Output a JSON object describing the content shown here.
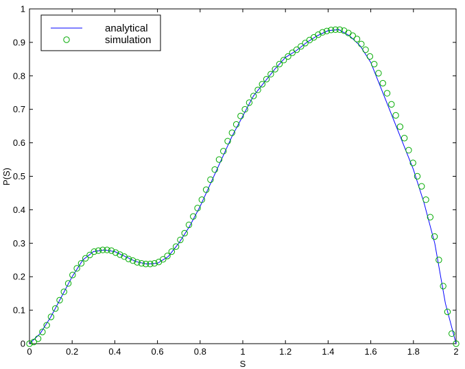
{
  "chart_data": {
    "type": "line",
    "title": "",
    "xlabel": "S",
    "ylabel": "P(S)",
    "xlim": [
      0,
      2
    ],
    "ylim": [
      0,
      1
    ],
    "xticks": [
      "0",
      "0.2",
      "0.4",
      "0.6",
      "0.8",
      "1",
      "1.2",
      "1.4",
      "1.6",
      "1.8",
      "2"
    ],
    "yticks": [
      "0",
      "0.1",
      "0.2",
      "0.3",
      "0.4",
      "0.5",
      "0.6",
      "0.7",
      "0.8",
      "0.9",
      "1"
    ],
    "grid": false,
    "legend": {
      "placement": "top-left",
      "entries": [
        "analytical",
        "simulation"
      ]
    },
    "series": [
      {
        "name": "analytical",
        "style": "line",
        "color": "#0000ff",
        "x": [
          0,
          0.05,
          0.1,
          0.15,
          0.2,
          0.25,
          0.3,
          0.35,
          0.4,
          0.45,
          0.5,
          0.55,
          0.6,
          0.65,
          0.7,
          0.75,
          0.8,
          0.85,
          0.9,
          0.95,
          1.0,
          1.05,
          1.1,
          1.15,
          1.2,
          1.25,
          1.3,
          1.35,
          1.4,
          1.45,
          1.5,
          1.55,
          1.6,
          1.65,
          1.7,
          1.75,
          1.8,
          1.85,
          1.9,
          1.95,
          2.0
        ],
        "y": [
          0,
          0.03,
          0.08,
          0.14,
          0.2,
          0.25,
          0.275,
          0.28,
          0.275,
          0.26,
          0.245,
          0.238,
          0.24,
          0.26,
          0.3,
          0.35,
          0.41,
          0.48,
          0.55,
          0.62,
          0.68,
          0.74,
          0.78,
          0.82,
          0.855,
          0.875,
          0.9,
          0.92,
          0.935,
          0.938,
          0.92,
          0.89,
          0.84,
          0.76,
          0.68,
          0.6,
          0.52,
          0.42,
          0.3,
          0.12,
          0
        ]
      },
      {
        "name": "simulation",
        "style": "markers",
        "marker": "circle",
        "color": "#00aa00",
        "x": [
          0,
          0.0202,
          0.0404,
          0.0606,
          0.0808,
          0.101,
          0.1212,
          0.1414,
          0.1616,
          0.1818,
          0.202,
          0.2222,
          0.2424,
          0.2626,
          0.2828,
          0.303,
          0.3232,
          0.3434,
          0.3636,
          0.3838,
          0.404,
          0.4242,
          0.4444,
          0.4646,
          0.4848,
          0.505,
          0.5252,
          0.5455,
          0.5657,
          0.5859,
          0.6061,
          0.6263,
          0.6465,
          0.6667,
          0.6869,
          0.7071,
          0.7273,
          0.7475,
          0.7677,
          0.7879,
          0.8081,
          0.8283,
          0.8485,
          0.8687,
          0.8889,
          0.9091,
          0.9293,
          0.9495,
          0.9697,
          0.9899,
          1.0101,
          1.0303,
          1.0505,
          1.0707,
          1.0909,
          1.1111,
          1.1313,
          1.1515,
          1.1717,
          1.1919,
          1.2121,
          1.2323,
          1.2525,
          1.2727,
          1.2929,
          1.3131,
          1.3333,
          1.3535,
          1.3737,
          1.3939,
          1.4141,
          1.4343,
          1.4545,
          1.4747,
          1.4949,
          1.5152,
          1.5354,
          1.5556,
          1.5758,
          1.596,
          1.6162,
          1.6364,
          1.6566,
          1.6768,
          1.697,
          1.7172,
          1.7374,
          1.7576,
          1.7778,
          1.798,
          1.8182,
          1.8384,
          1.8586,
          1.8788,
          1.899,
          1.9192,
          1.9394,
          1.9596,
          1.9798,
          2.0
        ],
        "y": [
          0,
          0.005,
          0.015,
          0.035,
          0.055,
          0.08,
          0.105,
          0.13,
          0.155,
          0.18,
          0.205,
          0.225,
          0.24,
          0.255,
          0.265,
          0.275,
          0.278,
          0.28,
          0.28,
          0.278,
          0.272,
          0.266,
          0.26,
          0.253,
          0.248,
          0.243,
          0.24,
          0.238,
          0.238,
          0.24,
          0.244,
          0.252,
          0.262,
          0.275,
          0.29,
          0.31,
          0.33,
          0.355,
          0.38,
          0.405,
          0.43,
          0.46,
          0.49,
          0.52,
          0.55,
          0.575,
          0.605,
          0.63,
          0.655,
          0.68,
          0.7,
          0.72,
          0.74,
          0.758,
          0.775,
          0.79,
          0.805,
          0.82,
          0.835,
          0.847,
          0.858,
          0.869,
          0.878,
          0.888,
          0.898,
          0.907,
          0.915,
          0.923,
          0.93,
          0.934,
          0.937,
          0.938,
          0.938,
          0.935,
          0.928,
          0.92,
          0.91,
          0.895,
          0.878,
          0.858,
          0.835,
          0.808,
          0.778,
          0.748,
          0.715,
          0.682,
          0.648,
          0.614,
          0.578,
          0.54,
          0.5,
          0.47,
          0.43,
          0.378,
          0.32,
          0.25,
          0.172,
          0.095,
          0.03,
          0.0
        ]
      }
    ]
  }
}
